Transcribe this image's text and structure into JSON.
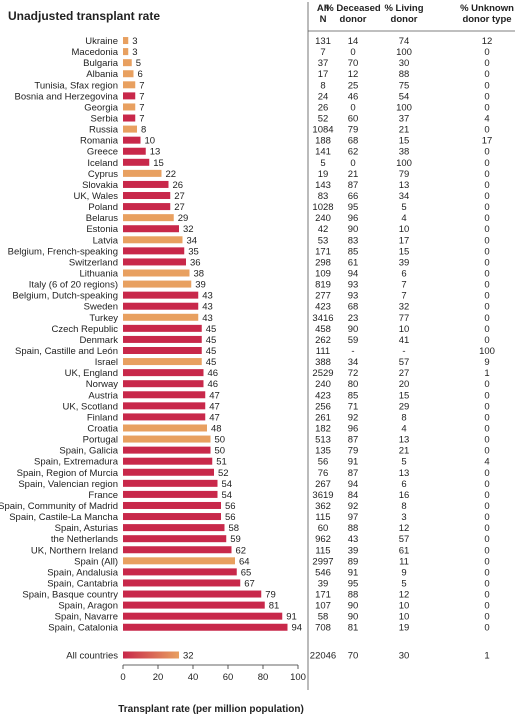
{
  "chart_data": {
    "type": "bar",
    "orientation": "horizontal",
    "title": "Unadjusted transplant rate",
    "xlabel": "Transplant rate (per million population)",
    "xlim": [
      0,
      100
    ],
    "xticks": [
      0,
      20,
      40,
      60,
      80,
      100
    ],
    "column_headers": [
      "All\nN",
      "% Deceased\ndonor",
      "% Living\ndonor",
      "% Unknown\ndonor type"
    ],
    "colors": {
      "orange": "#E8A060",
      "red": "#C8284A"
    },
    "rows": [
      {
        "country": "Ukraine",
        "rate": 3,
        "color": "orange",
        "n": "131",
        "deceased": "14",
        "living": "74",
        "unknown": "12"
      },
      {
        "country": "Macedonia",
        "rate": 3,
        "color": "orange",
        "n": "7",
        "deceased": "0",
        "living": "100",
        "unknown": "0"
      },
      {
        "country": "Bulgaria",
        "rate": 5,
        "color": "orange",
        "n": "37",
        "deceased": "70",
        "living": "30",
        "unknown": "0"
      },
      {
        "country": "Albania",
        "rate": 6,
        "color": "orange",
        "n": "17",
        "deceased": "12",
        "living": "88",
        "unknown": "0"
      },
      {
        "country": "Tunisia, Sfax region",
        "rate": 7,
        "color": "orange",
        "n": "8",
        "deceased": "25",
        "living": "75",
        "unknown": "0"
      },
      {
        "country": "Bosnia and Herzegovina",
        "rate": 7,
        "color": "red",
        "n": "24",
        "deceased": "46",
        "living": "54",
        "unknown": "0"
      },
      {
        "country": "Georgia",
        "rate": 7,
        "color": "orange",
        "n": "26",
        "deceased": "0",
        "living": "100",
        "unknown": "0"
      },
      {
        "country": "Serbia",
        "rate": 7,
        "color": "red",
        "n": "52",
        "deceased": "60",
        "living": "37",
        "unknown": "4"
      },
      {
        "country": "Russia",
        "rate": 8,
        "color": "orange",
        "n": "1084",
        "deceased": "79",
        "living": "21",
        "unknown": "0"
      },
      {
        "country": "Romania",
        "rate": 10,
        "color": "red",
        "n": "188",
        "deceased": "68",
        "living": "15",
        "unknown": "17"
      },
      {
        "country": "Greece",
        "rate": 13,
        "color": "red",
        "n": "141",
        "deceased": "62",
        "living": "38",
        "unknown": "0"
      },
      {
        "country": "Iceland",
        "rate": 15,
        "color": "red",
        "n": "5",
        "deceased": "0",
        "living": "100",
        "unknown": "0"
      },
      {
        "country": "Cyprus",
        "rate": 22,
        "color": "orange",
        "n": "19",
        "deceased": "21",
        "living": "79",
        "unknown": "0"
      },
      {
        "country": "Slovakia",
        "rate": 26,
        "color": "red",
        "n": "143",
        "deceased": "87",
        "living": "13",
        "unknown": "0"
      },
      {
        "country": "UK, Wales",
        "rate": 27,
        "color": "red",
        "n": "83",
        "deceased": "66",
        "living": "34",
        "unknown": "0"
      },
      {
        "country": "Poland",
        "rate": 27,
        "color": "red",
        "n": "1028",
        "deceased": "95",
        "living": "5",
        "unknown": "0"
      },
      {
        "country": "Belarus",
        "rate": 29,
        "color": "orange",
        "n": "240",
        "deceased": "96",
        "living": "4",
        "unknown": "0"
      },
      {
        "country": "Estonia",
        "rate": 32,
        "color": "red",
        "n": "42",
        "deceased": "90",
        "living": "10",
        "unknown": "0"
      },
      {
        "country": "Latvia",
        "rate": 34,
        "color": "orange",
        "n": "53",
        "deceased": "83",
        "living": "17",
        "unknown": "0"
      },
      {
        "country": "Belgium, French-speaking",
        "rate": 35,
        "color": "red",
        "n": "171",
        "deceased": "85",
        "living": "15",
        "unknown": "0"
      },
      {
        "country": "Switzerland",
        "rate": 36,
        "color": "red",
        "n": "298",
        "deceased": "61",
        "living": "39",
        "unknown": "0"
      },
      {
        "country": "Lithuania",
        "rate": 38,
        "color": "orange",
        "n": "109",
        "deceased": "94",
        "living": "6",
        "unknown": "0"
      },
      {
        "country": "Italy (6 of 20 regions)",
        "rate": 39,
        "color": "orange",
        "n": "819",
        "deceased": "93",
        "living": "7",
        "unknown": "0"
      },
      {
        "country": "Belgium, Dutch-speaking",
        "rate": 43,
        "color": "red",
        "n": "277",
        "deceased": "93",
        "living": "7",
        "unknown": "0"
      },
      {
        "country": "Sweden",
        "rate": 43,
        "color": "red",
        "n": "423",
        "deceased": "68",
        "living": "32",
        "unknown": "0"
      },
      {
        "country": "Turkey",
        "rate": 43,
        "color": "orange",
        "n": "3416",
        "deceased": "23",
        "living": "77",
        "unknown": "0"
      },
      {
        "country": "Czech Republic",
        "rate": 45,
        "color": "red",
        "n": "458",
        "deceased": "90",
        "living": "10",
        "unknown": "0"
      },
      {
        "country": "Denmark",
        "rate": 45,
        "color": "red",
        "n": "262",
        "deceased": "59",
        "living": "41",
        "unknown": "0"
      },
      {
        "country": "Spain, Castille and León",
        "rate": 45,
        "color": "red",
        "n": "111",
        "deceased": "-",
        "living": "-",
        "unknown": "100"
      },
      {
        "country": "Israel",
        "rate": 45,
        "color": "orange",
        "n": "388",
        "deceased": "34",
        "living": "57",
        "unknown": "9"
      },
      {
        "country": "UK, England",
        "rate": 46,
        "color": "red",
        "n": "2529",
        "deceased": "72",
        "living": "27",
        "unknown": "1"
      },
      {
        "country": "Norway",
        "rate": 46,
        "color": "red",
        "n": "240",
        "deceased": "80",
        "living": "20",
        "unknown": "0"
      },
      {
        "country": "Austria",
        "rate": 47,
        "color": "red",
        "n": "423",
        "deceased": "85",
        "living": "15",
        "unknown": "0"
      },
      {
        "country": "UK, Scotland",
        "rate": 47,
        "color": "red",
        "n": "256",
        "deceased": "71",
        "living": "29",
        "unknown": "0"
      },
      {
        "country": "Finland",
        "rate": 47,
        "color": "red",
        "n": "261",
        "deceased": "92",
        "living": "8",
        "unknown": "0"
      },
      {
        "country": "Croatia",
        "rate": 48,
        "color": "orange",
        "n": "182",
        "deceased": "96",
        "living": "4",
        "unknown": "0"
      },
      {
        "country": "Portugal",
        "rate": 50,
        "color": "orange",
        "n": "513",
        "deceased": "87",
        "living": "13",
        "unknown": "0"
      },
      {
        "country": "Spain, Galicia",
        "rate": 50,
        "color": "red",
        "n": "135",
        "deceased": "79",
        "living": "21",
        "unknown": "0"
      },
      {
        "country": "Spain, Extremadura",
        "rate": 51,
        "color": "red",
        "n": "56",
        "deceased": "91",
        "living": "5",
        "unknown": "4"
      },
      {
        "country": "Spain, Region of Murcia",
        "rate": 52,
        "color": "red",
        "n": "76",
        "deceased": "87",
        "living": "13",
        "unknown": "0"
      },
      {
        "country": "Spain, Valencian region",
        "rate": 54,
        "color": "red",
        "n": "267",
        "deceased": "94",
        "living": "6",
        "unknown": "0"
      },
      {
        "country": "France",
        "rate": 54,
        "color": "red",
        "n": "3619",
        "deceased": "84",
        "living": "16",
        "unknown": "0"
      },
      {
        "country": "Spain, Community of Madrid",
        "rate": 56,
        "color": "red",
        "n": "362",
        "deceased": "92",
        "living": "8",
        "unknown": "0"
      },
      {
        "country": "Spain, Castile-La Mancha",
        "rate": 56,
        "color": "red",
        "n": "115",
        "deceased": "97",
        "living": "3",
        "unknown": "0"
      },
      {
        "country": "Spain, Asturias",
        "rate": 58,
        "color": "red",
        "n": "60",
        "deceased": "88",
        "living": "12",
        "unknown": "0"
      },
      {
        "country": "the Netherlands",
        "rate": 59,
        "color": "red",
        "n": "962",
        "deceased": "43",
        "living": "57",
        "unknown": "0"
      },
      {
        "country": "UK, Northern Ireland",
        "rate": 62,
        "color": "red",
        "n": "115",
        "deceased": "39",
        "living": "61",
        "unknown": "0"
      },
      {
        "country": "Spain (All)",
        "rate": 64,
        "color": "orange",
        "n": "2997",
        "deceased": "89",
        "living": "11",
        "unknown": "0"
      },
      {
        "country": "Spain, Andalusia",
        "rate": 65,
        "color": "red",
        "n": "546",
        "deceased": "91",
        "living": "9",
        "unknown": "0"
      },
      {
        "country": "Spain, Cantabria",
        "rate": 67,
        "color": "red",
        "n": "39",
        "deceased": "95",
        "living": "5",
        "unknown": "0"
      },
      {
        "country": "Spain, Basque country",
        "rate": 79,
        "color": "red",
        "n": "171",
        "deceased": "88",
        "living": "12",
        "unknown": "0"
      },
      {
        "country": "Spain, Aragon",
        "rate": 81,
        "color": "red",
        "n": "107",
        "deceased": "90",
        "living": "10",
        "unknown": "0"
      },
      {
        "country": "Spain, Navarre",
        "rate": 91,
        "color": "red",
        "n": "58",
        "deceased": "90",
        "living": "10",
        "unknown": "0"
      },
      {
        "country": "Spain, Catalonia",
        "rate": 94,
        "color": "red",
        "n": "708",
        "deceased": "81",
        "living": "19",
        "unknown": "0"
      }
    ],
    "total": {
      "country": "All countries",
      "rate": 32,
      "color": "gradient",
      "n": "22046",
      "deceased": "70",
      "living": "30",
      "unknown": "1"
    }
  }
}
